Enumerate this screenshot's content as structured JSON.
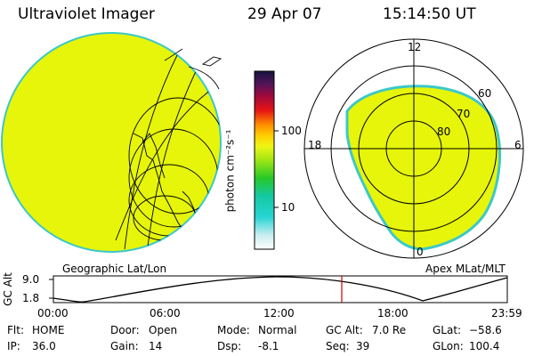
{
  "header": {
    "instrument": "Ultraviolet Imager",
    "date": "29 Apr 07",
    "time": "15:14:50 UT"
  },
  "colorbar": {
    "title": "photon cm⁻²s⁻¹",
    "ticks": [
      "100",
      "10"
    ]
  },
  "left_panel": {
    "label": "Geographic Lat/Lon",
    "fill_color": "#e6f50a",
    "edge_color": "#3cc8c8"
  },
  "right_panel": {
    "label": "Apex MLat/MLT",
    "mlt_labels": {
      "top": "12",
      "left": "18",
      "right": "6",
      "bottom": "0"
    },
    "lat_labels": [
      "60",
      "70",
      "80"
    ]
  },
  "altitude_plot": {
    "ylabel": "GC Alt",
    "yticks": [
      "9.0",
      "1.8"
    ],
    "xticks": [
      "00:00",
      "06:00",
      "12:00",
      "18:00",
      "23:59"
    ],
    "current_time_color": "#cc0000"
  },
  "info": {
    "flt_label": "Flt:",
    "flt_value": "HOME",
    "door_label": "Door:",
    "door_value": "Open",
    "mode_label": "Mode:",
    "mode_value": "Normal",
    "gcalt_label": "GC Alt:",
    "gcalt_value": "7.0 Re",
    "glat_label": "GLat:",
    "glat_value": "−58.6",
    "ip_label": "IP:",
    "ip_value": "36.0",
    "gain_label": "Gain:",
    "gain_value": "14",
    "dsp_label": "Dsp:",
    "dsp_value": "-8.1",
    "seq_label": "Seq:",
    "seq_value": "39",
    "glon_label": "GLon:",
    "glon_value": "100.4"
  }
}
